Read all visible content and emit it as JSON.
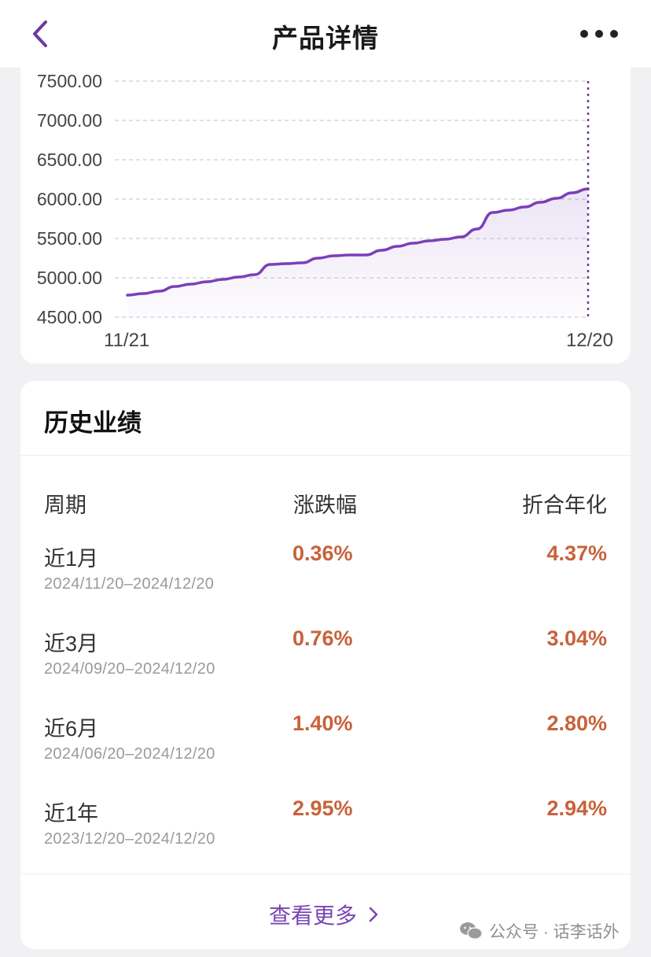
{
  "header": {
    "title": "产品详情",
    "back_icon": "chevron-left-icon",
    "more_icon": "more-dots-icon",
    "accent_color": "#6b3aa0"
  },
  "chart_data": {
    "type": "area",
    "x_start_label": "11/21",
    "x_end_label": "12/20",
    "yticks": [
      "7500.00",
      "7000.00",
      "6500.00",
      "6000.00",
      "5500.00",
      "5000.00",
      "4500.00"
    ],
    "ylim": [
      4500,
      7500
    ],
    "values": [
      4780,
      4800,
      4830,
      4890,
      4920,
      4950,
      4980,
      5010,
      5040,
      5170,
      5180,
      5190,
      5250,
      5280,
      5290,
      5290,
      5350,
      5400,
      5440,
      5470,
      5490,
      5520,
      5620,
      5830,
      5860,
      5900,
      5960,
      6010,
      6080,
      6130
    ],
    "line_color": "#7b3fb8",
    "grid": "dashed-horizontal",
    "marker": "dotted-vertical-at-last-point"
  },
  "performance": {
    "title": "历史业绩",
    "columns": [
      "周期",
      "涨跌幅",
      "折合年化"
    ],
    "rows": [
      {
        "name": "近1月",
        "range": "2024/11/20–2024/12/20",
        "change": "0.36%",
        "annualized": "4.37%"
      },
      {
        "name": "近3月",
        "range": "2024/09/20–2024/12/20",
        "change": "0.76%",
        "annualized": "3.04%"
      },
      {
        "name": "近6月",
        "range": "2024/06/20–2024/12/20",
        "change": "1.40%",
        "annualized": "2.80%"
      },
      {
        "name": "近1年",
        "range": "2023/12/20–2024/12/20",
        "change": "2.95%",
        "annualized": "2.94%"
      }
    ],
    "value_color": "#c8623a",
    "view_more": "查看更多"
  },
  "watermark": {
    "text": "公众号 · 话李话外",
    "icon": "wechat-icon"
  }
}
